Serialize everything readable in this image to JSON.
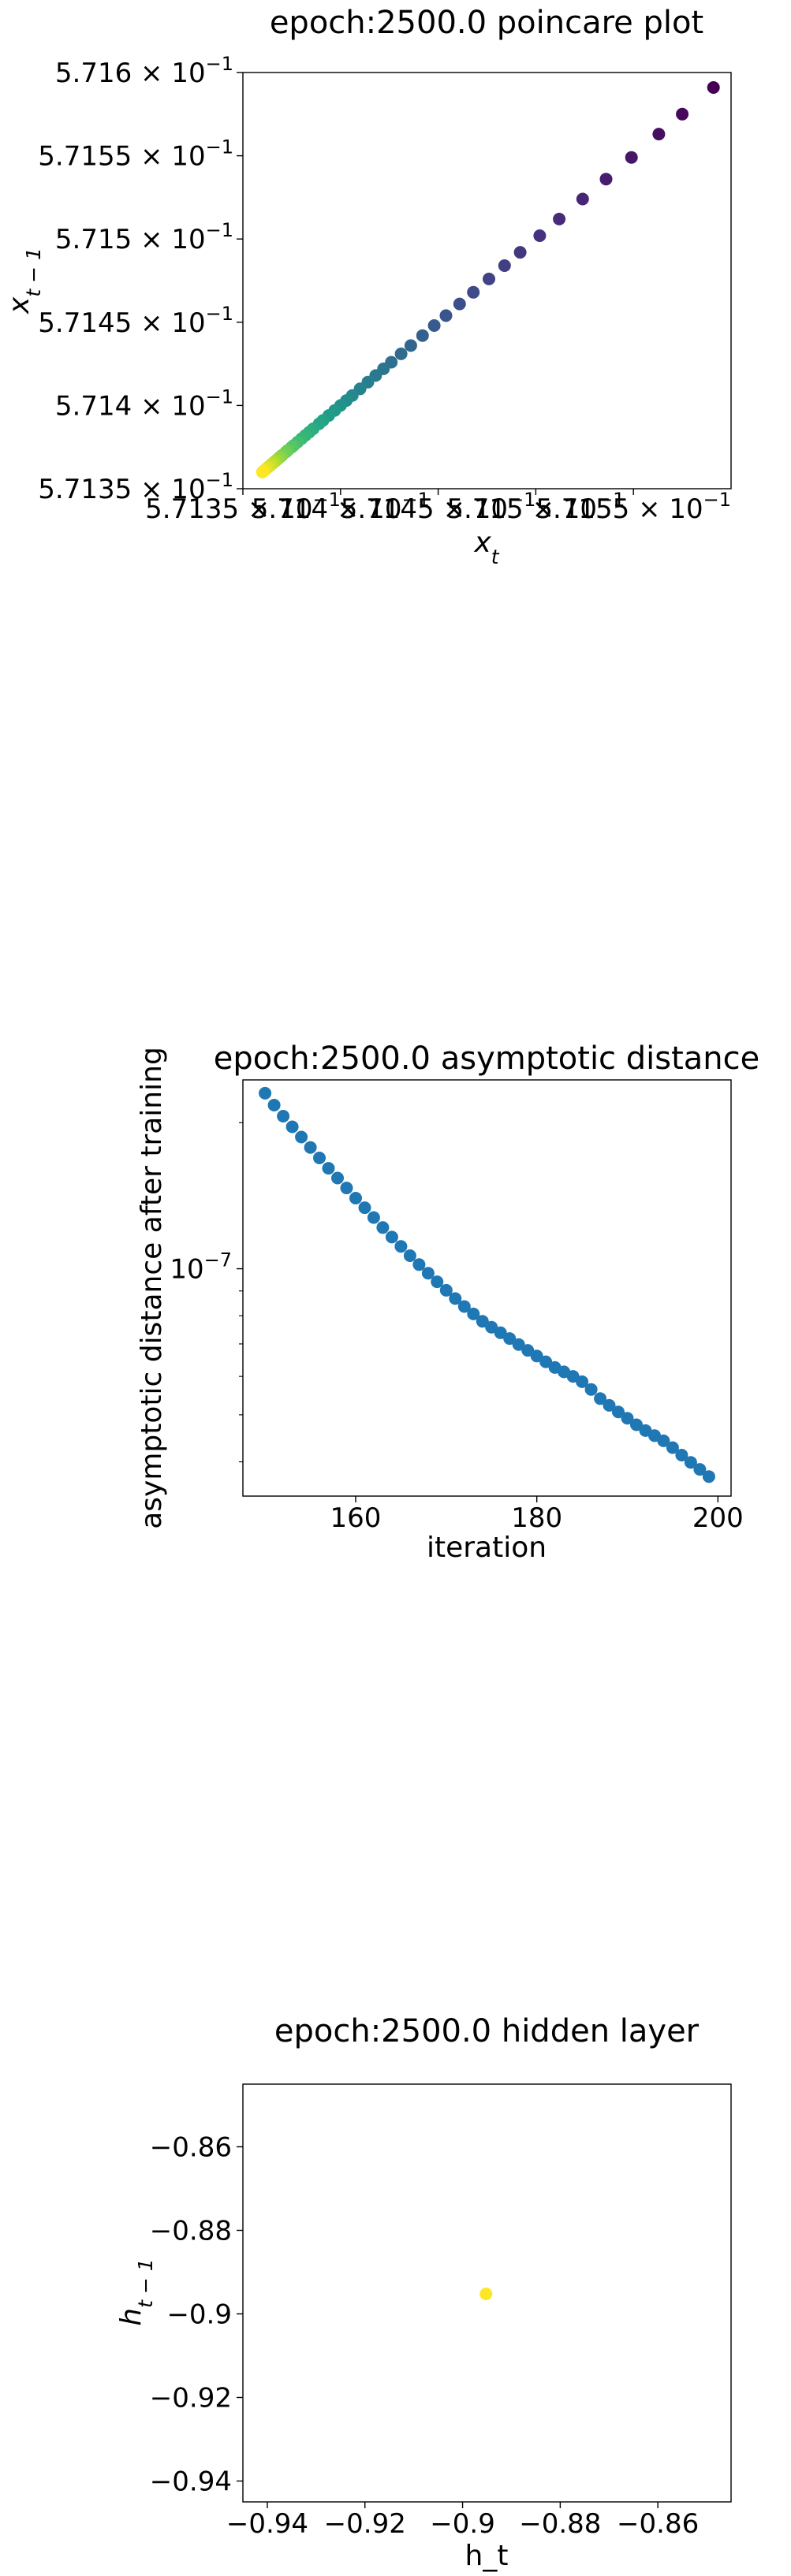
{
  "chart_data": [
    {
      "type": "scatter",
      "title": "epoch:2500.0 poincare plot",
      "xlabel": "x_t",
      "ylabel": "x_{t-1}",
      "xlim": [
        0.57135,
        0.5716
      ],
      "ylim": [
        0.57135,
        0.5716
      ],
      "x_ticks": [
        {
          "value": 0.57135,
          "mantissa": "5.7135",
          "exp": "−1"
        },
        {
          "value": 0.5714,
          "mantissa": "5.714",
          "exp": "−1"
        },
        {
          "value": 0.57145,
          "mantissa": "5.7145",
          "exp": "−1"
        },
        {
          "value": 0.5715,
          "mantissa": "5.715",
          "exp": "−1"
        },
        {
          "value": 0.57155,
          "mantissa": "5.7155",
          "exp": "−1"
        }
      ],
      "y_ticks": [
        {
          "value": 0.57135,
          "mantissa": "5.7135",
          "exp": "−1"
        },
        {
          "value": 0.5714,
          "mantissa": "5.714",
          "exp": "−1"
        },
        {
          "value": 0.57145,
          "mantissa": "5.7145",
          "exp": "−1"
        },
        {
          "value": 0.5715,
          "mantissa": "5.715",
          "exp": "−1"
        },
        {
          "value": 0.57155,
          "mantissa": "5.7155",
          "exp": "−1"
        },
        {
          "value": 0.5716,
          "mantissa": "5.716",
          "exp": "−1"
        }
      ],
      "colormap": "viridis",
      "colors": [
        "#440154",
        "#482878",
        "#3e4989",
        "#31688e",
        "#26828e",
        "#1f9e89",
        "#35b779",
        "#6ece58",
        "#b5de2b",
        "#fde725"
      ],
      "points": [
        [
          0.571591,
          0.571591
        ],
        [
          0.571575,
          0.571575
        ],
        [
          0.571563,
          0.571563
        ],
        [
          0.571549,
          0.571549
        ],
        [
          0.571536,
          0.571536
        ],
        [
          0.571524,
          0.571524
        ],
        [
          0.571512,
          0.571512
        ],
        [
          0.571502,
          0.571502
        ],
        [
          0.571492,
          0.571492
        ],
        [
          0.571484,
          0.571484
        ],
        [
          0.571476,
          0.571476
        ],
        [
          0.571468,
          0.571468
        ],
        [
          0.571461,
          0.571461
        ],
        [
          0.571454,
          0.571454
        ],
        [
          0.571448,
          0.571448
        ],
        [
          0.571442,
          0.571442
        ],
        [
          0.571436,
          0.571436
        ],
        [
          0.571431,
          0.571431
        ],
        [
          0.571426,
          0.571426
        ],
        [
          0.571422,
          0.571422
        ],
        [
          0.571418,
          0.571418
        ],
        [
          0.571414,
          0.571414
        ],
        [
          0.57141,
          0.57141
        ],
        [
          0.571406,
          0.571406
        ],
        [
          0.571403,
          0.571403
        ],
        [
          0.5714,
          0.5714
        ],
        [
          0.571397,
          0.571397
        ],
        [
          0.571394,
          0.571394
        ],
        [
          0.571391,
          0.571391
        ],
        [
          0.571389,
          0.571389
        ],
        [
          0.571386,
          0.571386
        ],
        [
          0.571384,
          0.571384
        ],
        [
          0.571382,
          0.571382
        ],
        [
          0.57138,
          0.57138
        ],
        [
          0.571378,
          0.571378
        ],
        [
          0.571376,
          0.571376
        ],
        [
          0.571375,
          0.571375
        ],
        [
          0.571373,
          0.571373
        ],
        [
          0.571372,
          0.571372
        ],
        [
          0.57137,
          0.57137
        ],
        [
          0.571369,
          0.571369
        ],
        [
          0.571368,
          0.571368
        ],
        [
          0.571367,
          0.571367
        ],
        [
          0.571366,
          0.571366
        ],
        [
          0.571365,
          0.571365
        ],
        [
          0.571364,
          0.571364
        ],
        [
          0.571363,
          0.571363
        ],
        [
          0.571362,
          0.571362
        ],
        [
          0.571361,
          0.571361
        ],
        [
          0.57136,
          0.57136
        ]
      ]
    },
    {
      "type": "scatter",
      "title": "epoch:2500.0 asymptotic distance",
      "xlabel": "iteration",
      "ylabel": "asymptotic distance after training",
      "xlim": [
        147.55,
        201.45
      ],
      "y_scale": "log",
      "ylim": [
        3.4e-08,
        2.45e-07
      ],
      "x_ticks": [
        160,
        180,
        200
      ],
      "y_ticks": [
        {
          "value": 1e-07,
          "base": "10",
          "exp": "−7"
        }
      ],
      "y_minor_ticks": [
        4e-08,
        5e-08,
        6e-08,
        7e-08,
        8e-08,
        9e-08,
        2e-07
      ],
      "color": "#1f77b4",
      "x": [
        150,
        151,
        152,
        153,
        154,
        155,
        156,
        157,
        158,
        159,
        160,
        161,
        162,
        163,
        164,
        165,
        166,
        167,
        168,
        169,
        170,
        171,
        172,
        173,
        174,
        175,
        176,
        177,
        178,
        179,
        180,
        181,
        182,
        183,
        184,
        185,
        186,
        187,
        188,
        189,
        190,
        191,
        192,
        193,
        194,
        195,
        196,
        197,
        198,
        199
      ],
      "y": [
        2.3e-07,
        2.174e-07,
        2.063e-07,
        1.961e-07,
        1.868e-07,
        1.778e-07,
        1.692e-07,
        1.611e-07,
        1.538e-07,
        1.467e-07,
        1.398e-07,
        1.336e-07,
        1.275e-07,
        1.216e-07,
        1.162e-07,
        1.112e-07,
        1.064e-07,
        1.02e-07,
        9.79e-08,
        9.4e-08,
        9.03e-08,
        8.68e-08,
        8.36e-08,
        8.07e-08,
        7.79e-08,
        7.58e-08,
        7.38e-08,
        7.18e-08,
        6.98e-08,
        6.79e-08,
        6.61e-08,
        6.43e-08,
        6.26e-08,
        6.13e-08,
        6e-08,
        5.85e-08,
        5.64e-08,
        5.4e-08,
        5.23e-08,
        5.07e-08,
        4.92e-08,
        4.77e-08,
        4.64e-08,
        4.53e-08,
        4.42e-08,
        4.28e-08,
        4.13e-08,
        3.99e-08,
        3.86e-08,
        3.73e-08
      ]
    },
    {
      "type": "scatter",
      "title": "epoch:2500.0 hidden layer",
      "xlabel": "h_t",
      "ylabel": "h_{t-1}",
      "xlim": [
        -0.945,
        -0.845
      ],
      "ylim": [
        -0.945,
        -0.845
      ],
      "x_ticks": [
        -0.94,
        -0.92,
        -0.9,
        -0.88,
        -0.86
      ],
      "y_ticks": [
        -0.86,
        -0.88,
        -0.9,
        -0.92,
        -0.94
      ],
      "color": "#fde725",
      "points": [
        [
          -0.8952,
          -0.8952
        ]
      ]
    }
  ]
}
